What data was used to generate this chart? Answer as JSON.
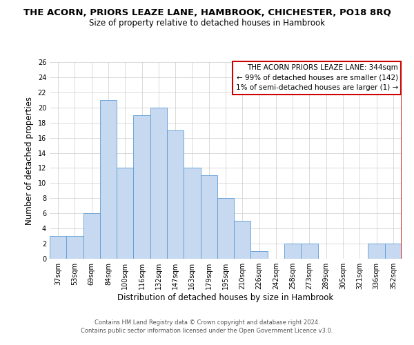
{
  "title": "THE ACORN, PRIORS LEAZE LANE, HAMBROOK, CHICHESTER, PO18 8RQ",
  "subtitle": "Size of property relative to detached houses in Hambrook",
  "xlabel": "Distribution of detached houses by size in Hambrook",
  "ylabel": "Number of detached properties",
  "bar_labels": [
    "37sqm",
    "53sqm",
    "69sqm",
    "84sqm",
    "100sqm",
    "116sqm",
    "132sqm",
    "147sqm",
    "163sqm",
    "179sqm",
    "195sqm",
    "210sqm",
    "226sqm",
    "242sqm",
    "258sqm",
    "273sqm",
    "289sqm",
    "305sqm",
    "321sqm",
    "336sqm",
    "352sqm"
  ],
  "bar_values": [
    3,
    3,
    6,
    21,
    12,
    19,
    20,
    17,
    12,
    11,
    8,
    5,
    1,
    0,
    2,
    2,
    0,
    0,
    0,
    2,
    2
  ],
  "bar_color": "#c6d9f0",
  "bar_edge_color": "#5b9bd5",
  "highlight_line_color": "#cc0000",
  "highlight_bar_index": 20,
  "annotation_title": "THE ACORN PRIORS LEAZE LANE: 344sqm",
  "annotation_line1": "← 99% of detached houses are smaller (142)",
  "annotation_line2": "1% of semi-detached houses are larger (1) →",
  "annotation_box_color": "#ffffff",
  "annotation_box_edge": "#cc0000",
  "ylim": [
    0,
    26
  ],
  "yticks": [
    0,
    2,
    4,
    6,
    8,
    10,
    12,
    14,
    16,
    18,
    20,
    22,
    24,
    26
  ],
  "footer1": "Contains HM Land Registry data © Crown copyright and database right 2024.",
  "footer2": "Contains public sector information licensed under the Open Government Licence v3.0.",
  "title_fontsize": 9.5,
  "subtitle_fontsize": 8.5,
  "axis_label_fontsize": 8.5,
  "tick_fontsize": 7,
  "annotation_fontsize": 7.5,
  "footer_fontsize": 6,
  "background_color": "#ffffff",
  "grid_color": "#cccccc"
}
